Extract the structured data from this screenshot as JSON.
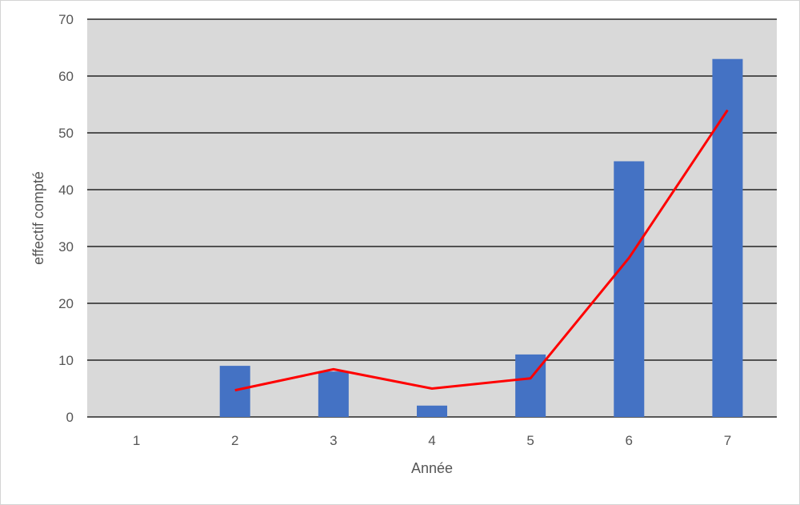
{
  "chart_data": {
    "type": "bar",
    "categories": [
      "1",
      "2",
      "3",
      "4",
      "5",
      "6",
      "7"
    ],
    "series": [
      {
        "type": "bar",
        "values": [
          0,
          9,
          8,
          2,
          11,
          45,
          63
        ],
        "color": "#4472C4"
      },
      {
        "type": "line",
        "values": [
          null,
          4.7,
          8.4,
          5,
          6.8,
          28,
          54
        ],
        "color": "#FF0000"
      }
    ],
    "title": "",
    "xlabel": "Année",
    "ylabel": "effectif compté",
    "ylim": [
      0,
      70
    ],
    "yticks": [
      "0",
      "10",
      "20",
      "30",
      "40",
      "50",
      "60",
      "70"
    ],
    "grid": true,
    "plot_background": "#D9D9D9"
  }
}
